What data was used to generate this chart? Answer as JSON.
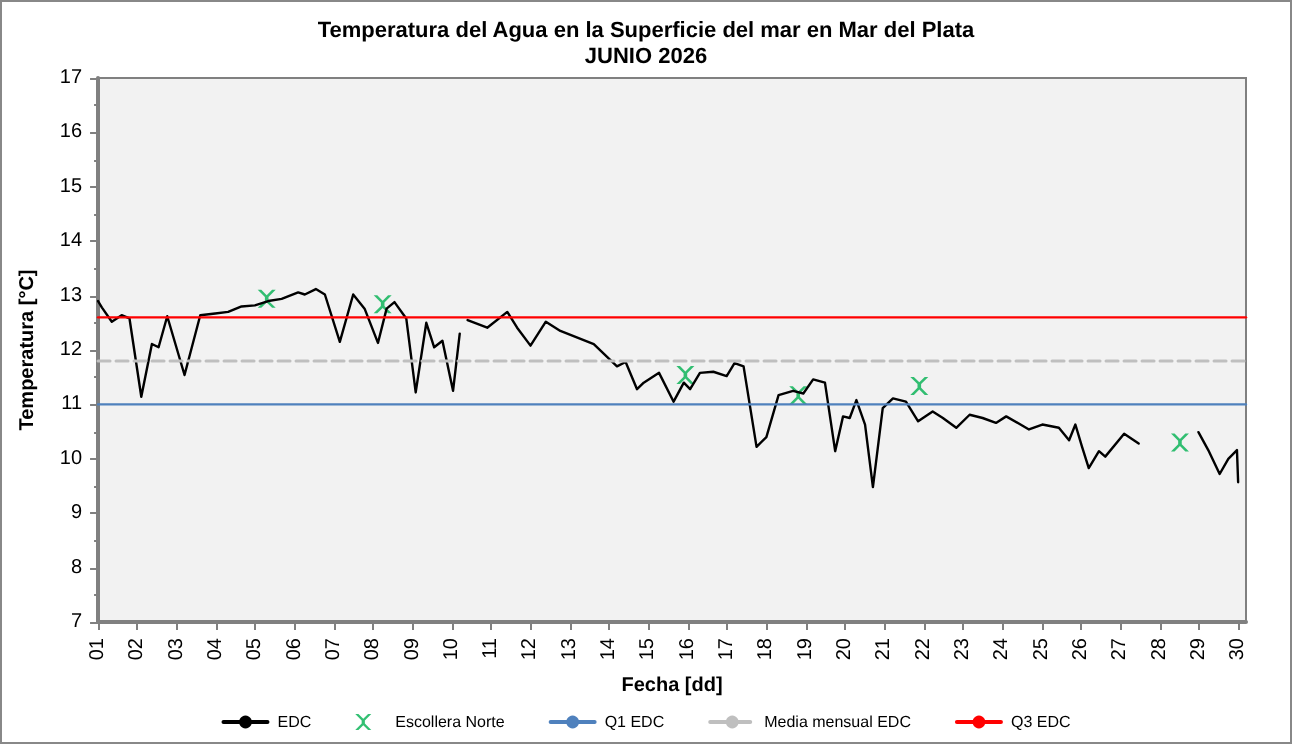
{
  "chart_data": {
    "type": "line",
    "title": "Temperatura del Agua en la Superficie del mar en Mar del Plata",
    "subtitle": "JUNIO 2026",
    "xlabel": "Fecha [dd]",
    "ylabel": "Temperatura [°C]",
    "xlim": [
      1,
      30.2
    ],
    "ylim": [
      7,
      17
    ],
    "yticks": [
      7,
      8,
      9,
      10,
      11,
      12,
      13,
      14,
      15,
      16,
      17
    ],
    "xticks": [
      {
        "value": 1,
        "label": "01"
      },
      {
        "value": 2,
        "label": "02"
      },
      {
        "value": 3,
        "label": "03"
      },
      {
        "value": 4,
        "label": "04"
      },
      {
        "value": 5,
        "label": "05"
      },
      {
        "value": 6,
        "label": "06"
      },
      {
        "value": 7,
        "label": "07"
      },
      {
        "value": 8,
        "label": "08"
      },
      {
        "value": 9,
        "label": "09"
      },
      {
        "value": 10,
        "label": "10"
      },
      {
        "value": 11,
        "label": "11"
      },
      {
        "value": 12,
        "label": "12"
      },
      {
        "value": 13,
        "label": "13"
      },
      {
        "value": 14,
        "label": "14"
      },
      {
        "value": 15,
        "label": "15"
      },
      {
        "value": 16,
        "label": "16"
      },
      {
        "value": 17,
        "label": "17"
      },
      {
        "value": 18,
        "label": "18"
      },
      {
        "value": 19,
        "label": "19"
      },
      {
        "value": 20,
        "label": "20"
      },
      {
        "value": 21,
        "label": "21"
      },
      {
        "value": 22,
        "label": "22"
      },
      {
        "value": 23,
        "label": "23"
      },
      {
        "value": 24,
        "label": "24"
      },
      {
        "value": 25,
        "label": "25"
      },
      {
        "value": 26,
        "label": "26"
      },
      {
        "value": 27,
        "label": "27"
      },
      {
        "value": 28,
        "label": "28"
      },
      {
        "value": 29,
        "label": "29"
      },
      {
        "value": 30,
        "label": "30"
      }
    ],
    "grid": false,
    "legend": "bottom",
    "marker": "none",
    "line_style": "solid",
    "series": [
      {
        "name": "EDC",
        "color": "#000000",
        "x": [
          1,
          1.1,
          1.35,
          1.6,
          1.8,
          2.1,
          2.37,
          2.54,
          2.76,
          3.2,
          3.6,
          3.98,
          4.31,
          4.65,
          4.99,
          5.33,
          5.67,
          6.09,
          6.26,
          6.54,
          6.77,
          7.15,
          7.49,
          7.78,
          8.12,
          8.34,
          8.54,
          8.84,
          9.08,
          9.35,
          9.55,
          9.76,
          10.03,
          10.2,
          10.3,
          10.4,
          10.9,
          11.41,
          11.66,
          12.0,
          12.39,
          12.76,
          13.61,
          14.2,
          14.42,
          14.71,
          14.88,
          15.27,
          15.64,
          15.9,
          16.06,
          16.31,
          16.65,
          16.99,
          17.19,
          17.42,
          17.75,
          18.0,
          18.31,
          18.68,
          18.94,
          19.19,
          19.49,
          19.75,
          19.95,
          20.12,
          20.29,
          20.51,
          20.71,
          20.96,
          21.22,
          21.55,
          21.86,
          22.23,
          22.49,
          22.83,
          23.17,
          23.5,
          23.84,
          24.1,
          24.68,
          25.02,
          25.44,
          25.7,
          25.86,
          26.03,
          26.2,
          26.46,
          26.62,
          27.1,
          27.47,
          28.2,
          28.99,
          29.24,
          29.53,
          29.75,
          29.97,
          30.0
        ],
        "values": [
          12.9,
          12.78,
          12.52,
          12.64,
          12.58,
          11.14,
          12.11,
          12.05,
          12.62,
          11.54,
          12.64,
          12.67,
          12.7,
          12.8,
          12.82,
          12.9,
          12.94,
          13.06,
          13.02,
          13.12,
          13.02,
          12.15,
          13.02,
          12.76,
          12.13,
          12.76,
          12.88,
          12.58,
          11.22,
          12.5,
          12.05,
          12.17,
          11.25,
          12.3,
          null,
          12.55,
          12.41,
          12.7,
          12.41,
          12.08,
          12.52,
          12.35,
          12.11,
          11.7,
          11.78,
          11.28,
          11.4,
          11.58,
          11.05,
          11.4,
          11.28,
          11.58,
          11.6,
          11.52,
          11.76,
          11.7,
          10.22,
          10.4,
          11.17,
          11.25,
          11.2,
          11.46,
          11.4,
          10.14,
          10.78,
          10.75,
          11.08,
          10.63,
          9.48,
          10.93,
          11.11,
          11.05,
          10.69,
          10.87,
          10.75,
          10.57,
          10.81,
          10.75,
          10.66,
          10.78,
          10.54,
          10.63,
          10.57,
          10.34,
          10.63,
          10.22,
          9.83,
          10.14,
          10.04,
          10.46,
          10.28,
          null,
          10.49,
          10.16,
          9.72,
          10.0,
          10.16,
          9.57
        ]
      },
      {
        "name": "Escollera Norte",
        "type": "scatter",
        "marker": "cross",
        "color": "#00b050",
        "x": [
          5.29,
          8.24,
          15.94,
          18.81,
          21.89,
          28.52
        ],
        "values": [
          12.94,
          12.84,
          11.54,
          11.17,
          11.34,
          10.3
        ]
      },
      {
        "name": "Q1 EDC",
        "color": "#4f81bd",
        "x": [
          1,
          30.2
        ],
        "values": [
          11.0,
          11.0
        ]
      },
      {
        "name": "Media mensual EDC",
        "color": "#bfbfbf",
        "line_style": "dashed",
        "x": [
          1,
          30.2
        ],
        "values": [
          11.8,
          11.8
        ]
      },
      {
        "name": "Q3 EDC",
        "color": "#ff0000",
        "x": [
          1,
          30.2
        ],
        "values": [
          12.6,
          12.6
        ]
      }
    ]
  }
}
